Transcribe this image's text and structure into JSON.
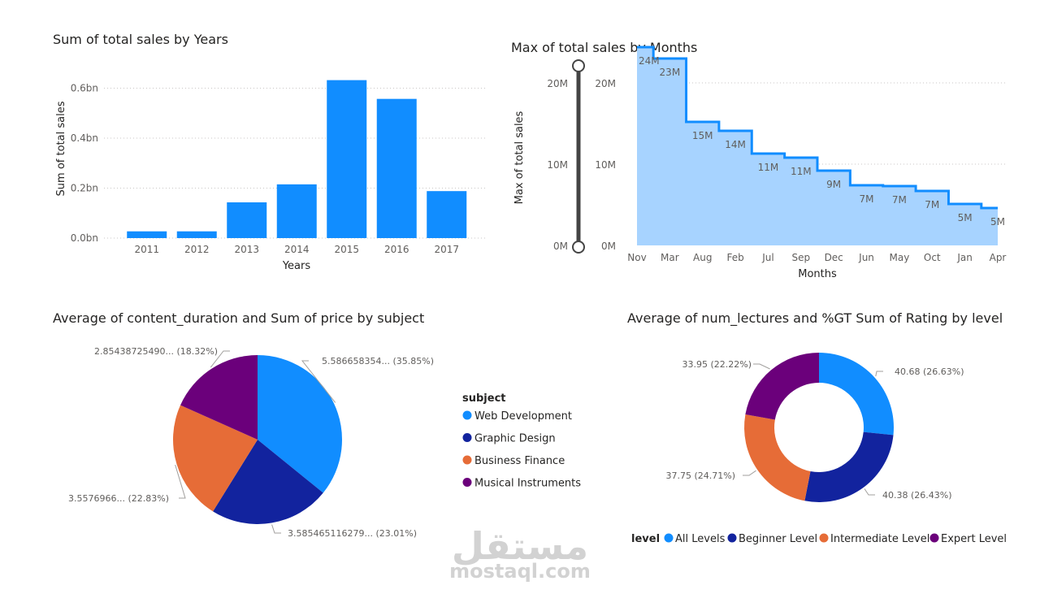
{
  "chart_data": [
    {
      "id": "c1",
      "type": "bar",
      "title": "Sum of total sales by Years",
      "xlabel": "Years",
      "ylabel": "Sum of total sales",
      "categories": [
        "2011",
        "2012",
        "2013",
        "2014",
        "2015",
        "2016",
        "2017"
      ],
      "values": [
        0.027,
        0.027,
        0.143,
        0.215,
        0.632,
        0.557,
        0.188
      ],
      "yticks": [
        0,
        0.2,
        0.4,
        0.6
      ],
      "ytick_labels": [
        "0.0bn",
        "0.2bn",
        "0.4bn",
        "0.6bn"
      ],
      "ylim": [
        0,
        0.66
      ],
      "color": "#118DFF"
    },
    {
      "id": "c2",
      "type": "area",
      "title": "Max of total sales by Months",
      "xlabel": "Months",
      "ylabel": "Max of total sales",
      "categories": [
        "Nov",
        "Mar",
        "Aug",
        "Feb",
        "Jul",
        "Sep",
        "Dec",
        "Jun",
        "May",
        "Oct",
        "Jan",
        "Apr"
      ],
      "values": [
        24.4,
        23.0,
        15.2,
        14.1,
        11.3,
        10.8,
        9.2,
        7.4,
        7.3,
        6.7,
        5.1,
        4.6
      ],
      "data_labels": [
        "24M",
        "23M",
        "15M",
        "14M",
        "11M",
        "11M",
        "9M",
        "7M",
        "7M",
        "7M",
        "5M",
        "5M"
      ],
      "yticks": [
        0,
        10,
        20
      ],
      "ytick_labels": [
        "0M",
        "10M",
        "20M"
      ],
      "ylim": [
        0,
        25
      ],
      "line_color": "#118DFF",
      "fill_color": "#A7D3FF"
    },
    {
      "id": "c3",
      "type": "pie",
      "title": "Average of content_duration and Sum of price by subject",
      "legend_title": "subject",
      "slices": [
        {
          "name": "Web Development",
          "value": 35.85,
          "label": "5.586658354... (35.85%)",
          "color": "#118DFF"
        },
        {
          "name": "Graphic Design",
          "value": 23.01,
          "label": "3.585465116279... (23.01%)",
          "color": "#12239E"
        },
        {
          "name": "Business Finance",
          "value": 22.83,
          "label": "3.5576966... (22.83%)",
          "color": "#E66C37"
        },
        {
          "name": "Musical Instruments",
          "value": 18.32,
          "label": "2.85438725490... (18.32%)",
          "color": "#6B007B"
        }
      ]
    },
    {
      "id": "c4",
      "type": "pie",
      "subtype": "donut",
      "title": "Average of num_lectures and %GT Sum of Rating by level",
      "legend_title": "level",
      "slices": [
        {
          "name": "All Levels",
          "value": 26.63,
          "label": "40.68 (26.63%)",
          "color": "#118DFF"
        },
        {
          "name": "Beginner Level",
          "value": 26.43,
          "label": "40.38 (26.43%)",
          "color": "#12239E"
        },
        {
          "name": "Intermediate Level",
          "value": 24.71,
          "label": "37.75 (24.71%)",
          "color": "#E66C37"
        },
        {
          "name": "Expert Level",
          "value": 22.22,
          "label": "33.95 (22.22%)",
          "color": "#6B007B"
        }
      ]
    }
  ],
  "watermark": {
    "arabic": "مستقل",
    "latin": "mostaql.com"
  }
}
